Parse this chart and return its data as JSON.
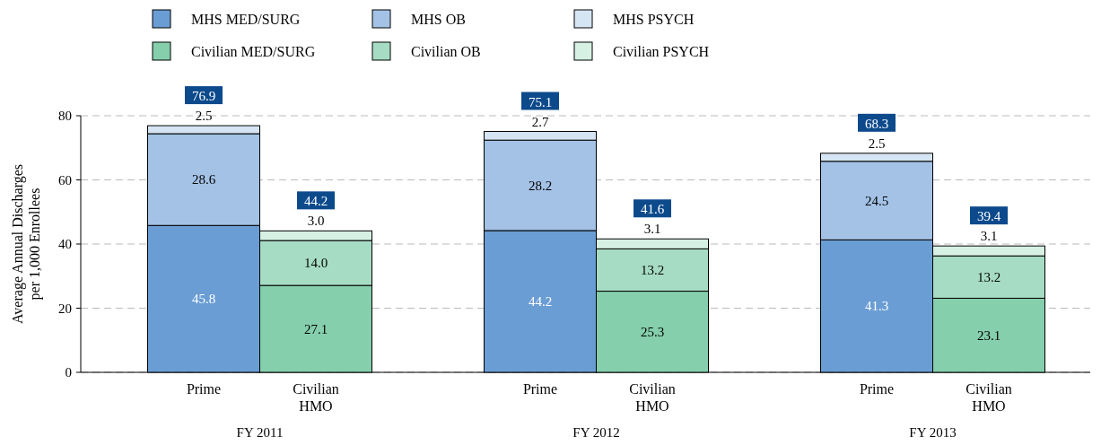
{
  "chart_data": {
    "type": "bar",
    "stacked": true,
    "categories": [
      "Prime",
      "Civilian HMO",
      null,
      "Prime",
      "Civilian HMO",
      null,
      "Prime",
      "Civilian HMO"
    ],
    "series": [
      {
        "name": "MHS MED/SURG",
        "color": "#6a9dd4",
        "values": [
          45.8,
          null,
          null,
          44.2,
          null,
          null,
          41.3,
          null
        ],
        "value_labels": [
          "45.8",
          null,
          null,
          "44.2",
          null,
          null,
          "41.3",
          null
        ]
      },
      {
        "name": "MHS OB",
        "color": "#a3c2e6",
        "values": [
          28.6,
          null,
          null,
          28.2,
          null,
          null,
          24.5,
          null
        ],
        "value_labels": [
          "28.6",
          null,
          null,
          "28.2",
          null,
          null,
          "24.5",
          null
        ]
      },
      {
        "name": "MHS PSYCH",
        "color": "#d6e5f4",
        "values": [
          2.5,
          null,
          null,
          2.7,
          null,
          null,
          2.5,
          null
        ],
        "value_labels": [
          "2.5",
          null,
          null,
          "2.7",
          null,
          null,
          "2.5",
          null
        ]
      },
      {
        "name": "Civilian MED/SURG",
        "color": "#85cfac",
        "values": [
          null,
          27.1,
          null,
          null,
          25.3,
          null,
          null,
          23.1
        ],
        "value_labels": [
          null,
          "27.1",
          null,
          null,
          "25.3",
          null,
          null,
          "23.1"
        ]
      },
      {
        "name": "Civilian OB",
        "color": "#a6dcc3",
        "values": [
          null,
          14.0,
          null,
          null,
          13.2,
          null,
          null,
          13.2
        ],
        "value_labels": [
          null,
          "14.0",
          null,
          null,
          "13.2",
          null,
          null,
          "13.2"
        ]
      },
      {
        "name": "Civilian PSYCH",
        "color": "#d6f1e4",
        "values": [
          null,
          3.0,
          null,
          null,
          3.1,
          null,
          null,
          3.1
        ],
        "value_labels": [
          null,
          "3.0",
          null,
          null,
          "3.1",
          null,
          null,
          "3.1"
        ]
      }
    ],
    "totals": [
      "76.9",
      "44.2",
      null,
      "75.1",
      "41.6",
      null,
      "68.3",
      "39.4"
    ],
    "ylabel": "Average Annual Discharges per 1,000 Enrollees",
    "ylim": [
      0,
      80
    ],
    "yticks": [
      0,
      20,
      40,
      60,
      80
    ],
    "grid": "y",
    "legend": "top",
    "annotations": [
      "FY 2011",
      "FY 2012",
      "FY 2013"
    ]
  }
}
